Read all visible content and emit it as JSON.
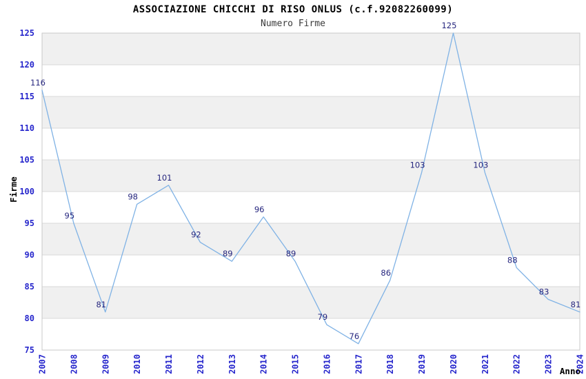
{
  "chart_data": {
    "type": "line",
    "title": "ASSOCIAZIONE CHICCHI DI RISO ONLUS (c.f.92082260099)",
    "subtitle": "Numero Firme",
    "xlabel": "Anno",
    "ylabel": "Firme",
    "categories": [
      "2007",
      "2008",
      "2009",
      "2010",
      "2011",
      "2012",
      "2013",
      "2014",
      "2015",
      "2016",
      "2017",
      "2018",
      "2019",
      "2020",
      "2021",
      "2022",
      "2023",
      "2024"
    ],
    "series": [
      {
        "name": "Numero Firme",
        "values": [
          116,
          95,
          81,
          98,
          101,
          92,
          89,
          96,
          89,
          79,
          76,
          86,
          103,
          125,
          103,
          88,
          83,
          81
        ]
      }
    ],
    "ylim": [
      75,
      125
    ],
    "ytick_step": 5,
    "grid": true,
    "bands_alternating": true,
    "legend_position": "none",
    "colors": {
      "line": "#7fb2e5",
      "tick_label": "#2626cc",
      "value_label": "#26267e",
      "band": "#f0f0f0",
      "grid_line": "#d8d8d8",
      "plot_border": "#c9c9c9",
      "title": "#000000",
      "subtitle": "#3a3a3a",
      "axis_title": "#000000",
      "background": "#ffffff"
    }
  }
}
